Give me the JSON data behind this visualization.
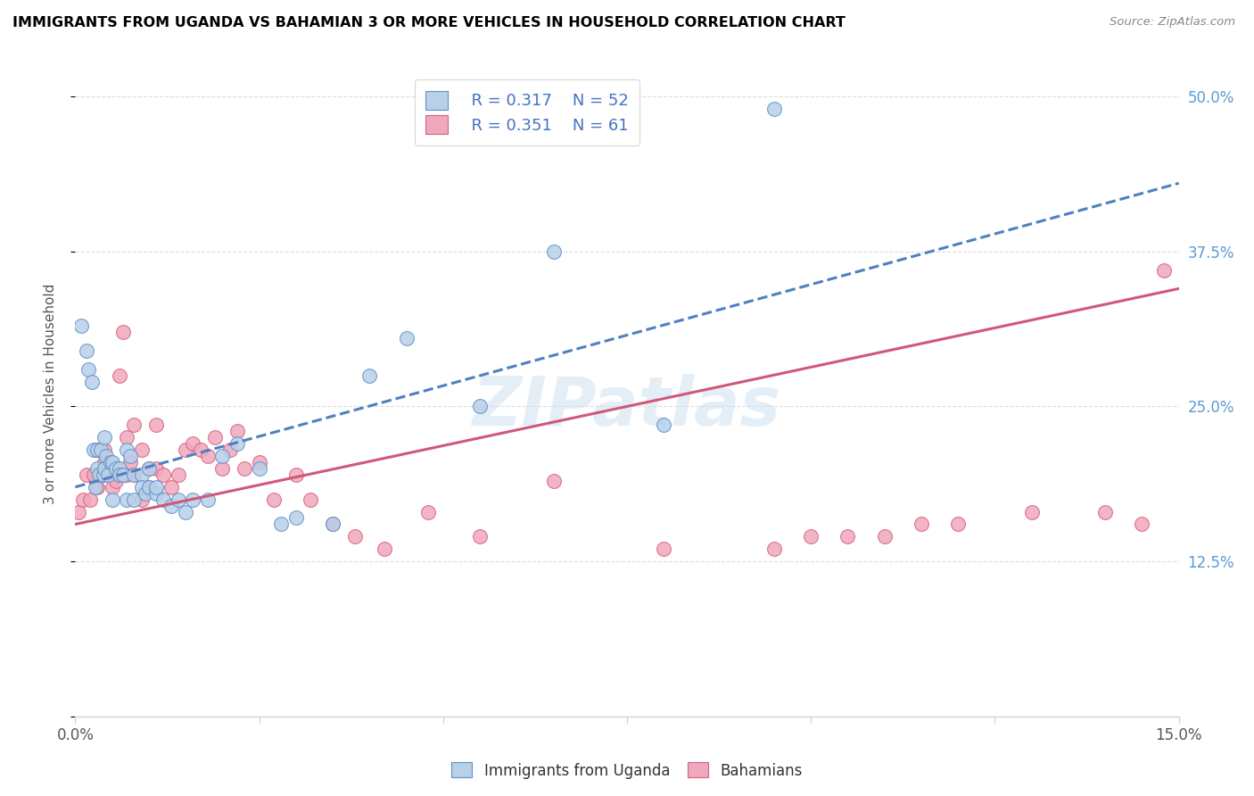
{
  "title": "IMMIGRANTS FROM UGANDA VS BAHAMIAN 3 OR MORE VEHICLES IN HOUSEHOLD CORRELATION CHART",
  "source": "Source: ZipAtlas.com",
  "ylabel_label": "3 or more Vehicles in Household",
  "legend_label_1": "Immigrants from Uganda",
  "legend_label_2": "Bahamians",
  "legend_r1": "R = 0.317",
  "legend_n1": "N = 52",
  "legend_r2": "R = 0.351",
  "legend_n2": "N = 61",
  "color_blue": "#b8d0e8",
  "color_pink": "#f0a8bc",
  "edge_blue": "#6090c8",
  "edge_pink": "#d86080",
  "trendline_blue_color": "#5080c0",
  "trendline_pink_color": "#d05878",
  "watermark": "ZIPatlas",
  "blue_scatter_x": [
    0.0008,
    0.0015,
    0.0018,
    0.0022,
    0.0025,
    0.0028,
    0.003,
    0.003,
    0.0032,
    0.0035,
    0.0038,
    0.004,
    0.004,
    0.0042,
    0.0045,
    0.0048,
    0.005,
    0.005,
    0.0055,
    0.006,
    0.006,
    0.0065,
    0.007,
    0.007,
    0.0075,
    0.008,
    0.008,
    0.009,
    0.009,
    0.0095,
    0.01,
    0.01,
    0.011,
    0.011,
    0.012,
    0.013,
    0.014,
    0.015,
    0.016,
    0.018,
    0.02,
    0.022,
    0.025,
    0.028,
    0.03,
    0.035,
    0.04,
    0.045,
    0.055,
    0.065,
    0.08,
    0.095
  ],
  "blue_scatter_y": [
    0.315,
    0.295,
    0.28,
    0.27,
    0.215,
    0.185,
    0.215,
    0.2,
    0.195,
    0.215,
    0.195,
    0.225,
    0.2,
    0.21,
    0.195,
    0.205,
    0.175,
    0.205,
    0.2,
    0.2,
    0.195,
    0.195,
    0.175,
    0.215,
    0.21,
    0.175,
    0.195,
    0.195,
    0.185,
    0.18,
    0.2,
    0.185,
    0.18,
    0.185,
    0.175,
    0.17,
    0.175,
    0.165,
    0.175,
    0.175,
    0.21,
    0.22,
    0.2,
    0.155,
    0.16,
    0.155,
    0.275,
    0.305,
    0.25,
    0.375,
    0.235,
    0.49
  ],
  "pink_scatter_x": [
    0.0005,
    0.001,
    0.0015,
    0.002,
    0.0025,
    0.003,
    0.003,
    0.0035,
    0.004,
    0.004,
    0.0045,
    0.005,
    0.005,
    0.0055,
    0.006,
    0.006,
    0.0065,
    0.007,
    0.007,
    0.0075,
    0.008,
    0.008,
    0.009,
    0.009,
    0.01,
    0.01,
    0.011,
    0.011,
    0.012,
    0.013,
    0.014,
    0.015,
    0.016,
    0.017,
    0.018,
    0.019,
    0.02,
    0.021,
    0.022,
    0.023,
    0.025,
    0.027,
    0.03,
    0.032,
    0.035,
    0.038,
    0.042,
    0.048,
    0.055,
    0.065,
    0.08,
    0.095,
    0.1,
    0.105,
    0.11,
    0.115,
    0.12,
    0.13,
    0.14,
    0.145,
    0.148
  ],
  "pink_scatter_y": [
    0.165,
    0.175,
    0.195,
    0.175,
    0.195,
    0.185,
    0.215,
    0.195,
    0.205,
    0.215,
    0.2,
    0.185,
    0.2,
    0.19,
    0.275,
    0.195,
    0.31,
    0.225,
    0.195,
    0.205,
    0.195,
    0.235,
    0.175,
    0.215,
    0.2,
    0.185,
    0.2,
    0.235,
    0.195,
    0.185,
    0.195,
    0.215,
    0.22,
    0.215,
    0.21,
    0.225,
    0.2,
    0.215,
    0.23,
    0.2,
    0.205,
    0.175,
    0.195,
    0.175,
    0.155,
    0.145,
    0.135,
    0.165,
    0.145,
    0.19,
    0.135,
    0.135,
    0.145,
    0.145,
    0.145,
    0.155,
    0.155,
    0.165,
    0.165,
    0.155,
    0.36
  ],
  "trendline_blue_x0": 0.0,
  "trendline_blue_y0": 0.185,
  "trendline_blue_x1": 0.15,
  "trendline_blue_y1": 0.43,
  "trendline_pink_x0": 0.0,
  "trendline_pink_y0": 0.155,
  "trendline_pink_x1": 0.15,
  "trendline_pink_y1": 0.345,
  "xlim": [
    0.0,
    0.15
  ],
  "ylim": [
    0.0,
    0.52
  ],
  "x_tick_positions": [
    0.0,
    0.025,
    0.05,
    0.075,
    0.1,
    0.125,
    0.15
  ],
  "y_tick_positions": [
    0.0,
    0.125,
    0.25,
    0.375,
    0.5
  ],
  "figsize": [
    14.06,
    8.92
  ],
  "dpi": 100
}
